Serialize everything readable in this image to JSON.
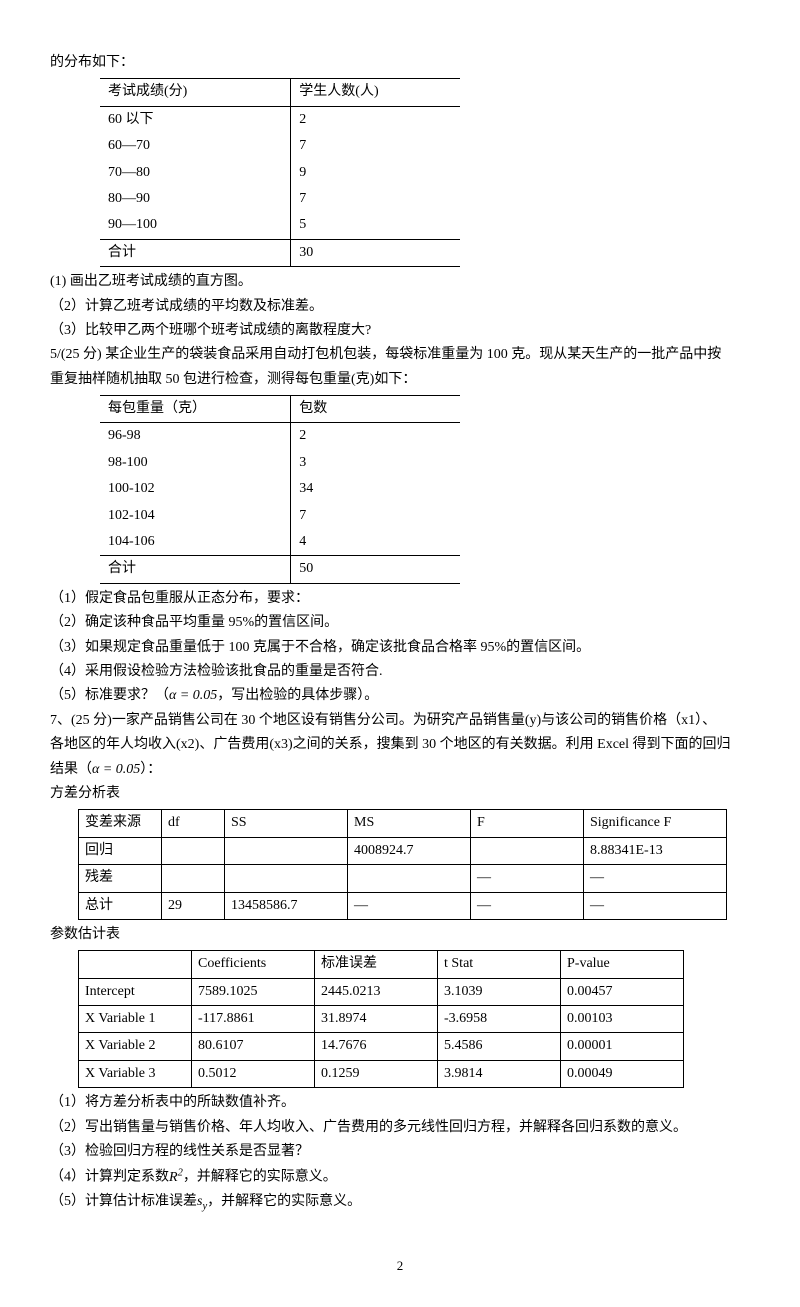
{
  "intro": "的分布如下：",
  "table1": {
    "headers": [
      "考试成绩(分)",
      "学生人数(人)"
    ],
    "rows": [
      [
        "60 以下",
        "2"
      ],
      [
        "60—70",
        "7"
      ],
      [
        "70—80",
        "9"
      ],
      [
        "80—90",
        "7"
      ],
      [
        "  90—100",
        "5"
      ],
      [
        "合计",
        "30"
      ]
    ]
  },
  "q1_1": "(1)   画出乙班考试成绩的直方图。",
  "q1_2": "（2）计算乙班考试成绩的平均数及标准差。",
  "q1_3": "（3）比较甲乙两个班哪个班考试成绩的离散程度大?",
  "q5_intro1": "5/(25 分)   某企业生产的袋装食品采用自动打包机包装，每袋标准重量为 100 克。现从某天生产的一批产品中按",
  "q5_intro2": "重复抽样随机抽取 50 包进行检查，测得每包重量(克)如下：",
  "table2": {
    "headers": [
      "每包重量（克）",
      "包数"
    ],
    "rows": [
      [
        "96-98",
        "2"
      ],
      [
        "98-100",
        "3"
      ],
      [
        "100-102",
        "34"
      ],
      [
        "102-104",
        "7"
      ],
      [
        "104-106",
        "4"
      ],
      [
        "合计",
        "50"
      ]
    ]
  },
  "q5_1": "（1）假定食品包重服从正态分布，要求：",
  "q5_2": "（2）确定该种食品平均重量 95%的置信区间。",
  "q5_3": "（3）如果规定食品重量低于 100 克属于不合格，确定该批食品合格率 95%的置信区间。",
  "q5_4": "（4）采用假设检验方法检验该批食品的重量是否符合.",
  "q5_5a": "（5）标准要求？（",
  "q5_5alpha": "α = 0.05",
  "q5_5b": "，写出检验的具体步骤）。",
  "q7_intro1": "7、(25 分)一家产品销售公司在 30 个地区设有销售分公司。为研究产品销售量(y)与该公司的销售价格（x1）、",
  "q7_intro2a": "各地区的年人均收入(x2)、广告费用(x3)之间的关系，搜集到 30 个地区的有关数据。利用 Excel 得到下面的回归",
  "q7_intro3a": "结果（",
  "q7_alpha": "α = 0.05",
  "q7_intro3b": "）：",
  "anova_title": "方差分析表",
  "anova": {
    "headers": [
      "变差来源",
      "df",
      "SS",
      "MS",
      "F",
      "Significance F"
    ],
    "rows": [
      [
        "回归",
        "",
        "",
        "4008924.7",
        "",
        "8.88341E-13"
      ],
      [
        "残差",
        "",
        "",
        "",
        "—",
        "—"
      ],
      [
        "总计",
        "29",
        "13458586.7",
        "—",
        "—",
        "—"
      ]
    ]
  },
  "param_title": "参数估计表",
  "param": {
    "headers": [
      "",
      "Coefficients",
      "标准误差",
      "t Stat",
      "P-value"
    ],
    "rows": [
      [
        "Intercept",
        "7589.1025",
        "2445.0213",
        "3.1039",
        "0.00457"
      ],
      [
        "X Variable 1",
        "-117.8861",
        "31.8974",
        "-3.6958",
        "0.00103"
      ],
      [
        "X Variable 2",
        "80.6107",
        "14.7676",
        "5.4586",
        "0.00001"
      ],
      [
        "X Variable 3",
        "0.5012",
        "0.1259",
        "3.9814",
        "0.00049"
      ]
    ]
  },
  "q7_1": "（1）将方差分析表中的所缺数值补齐。",
  "q7_2": "（2）写出销售量与销售价格、年人均收入、广告费用的多元线性回归方程，并解释各回归系数的意义。",
  "q7_3": "（3）检验回归方程的线性关系是否显著？",
  "q7_4a": "（4）计算判定系数",
  "q7_4b": "，并解释它的实际意义。",
  "q7_5a": "（5）计算估计标准误差",
  "q7_5b": "，并解释它的实际意义。",
  "R2": "R",
  "sy": "s",
  "y": "y",
  "page_num": "2"
}
